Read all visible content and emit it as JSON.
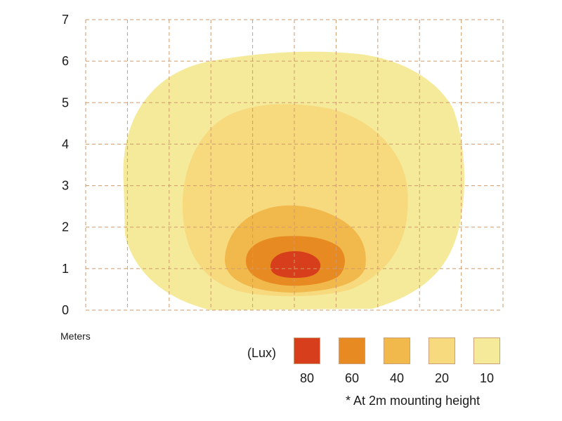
{
  "chart_data": {
    "type": "heatmap",
    "title": "",
    "ylabel": "",
    "y_ticks": [
      "0",
      "1",
      "2",
      "3",
      "4",
      "5",
      "6",
      "7"
    ],
    "ylim": [
      0,
      7
    ],
    "xlim": [
      -5,
      5
    ],
    "grid": true,
    "unit_label": "Meters",
    "legend": {
      "title": "(Lux)",
      "placement": "bottom-right",
      "items": [
        {
          "value": "80",
          "color": "#d63e1c"
        },
        {
          "value": "60",
          "color": "#e88a22"
        },
        {
          "value": "40",
          "color": "#f1b84c"
        },
        {
          "value": "20",
          "color": "#f7d97e"
        },
        {
          "value": "10",
          "color": "#f5ea9a"
        }
      ]
    },
    "contours": [
      {
        "lux": 10,
        "x_range": [
          -4.1,
          4.1
        ],
        "y_range": [
          0,
          6.2
        ]
      },
      {
        "lux": 20,
        "x_range": [
          -2.7,
          2.7
        ],
        "y_range": [
          0.3,
          4.9
        ]
      },
      {
        "lux": 40,
        "x_range": [
          -1.7,
          1.7
        ],
        "y_range": [
          0.45,
          2.55
        ]
      },
      {
        "lux": 60,
        "x_range": [
          -1.2,
          1.2
        ],
        "y_range": [
          0.65,
          1.75
        ]
      },
      {
        "lux": 80,
        "x_range": [
          -0.6,
          0.6
        ],
        "y_range": [
          0.8,
          1.4
        ]
      }
    ],
    "footnote": "* At 2m mounting height"
  }
}
